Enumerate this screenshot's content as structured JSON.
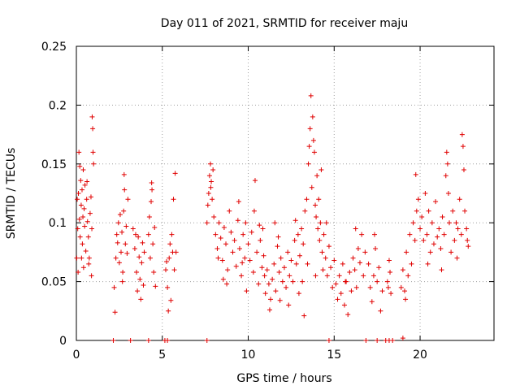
{
  "chart_data": {
    "type": "scatter",
    "title": "Day 011 of 2021, SRMTID for receiver maju",
    "xlabel": "GPS time / hours",
    "ylabel": "SRMTID / TECUs",
    "xlim": [
      0,
      24.3
    ],
    "ylim": [
      0,
      0.25
    ],
    "x_ticks": [
      0,
      5,
      10,
      15,
      20
    ],
    "x_tick_labels": [
      "0",
      "5",
      "10",
      "15",
      "20"
    ],
    "y_ticks": [
      0,
      0.05,
      0.1,
      0.15,
      0.2,
      0.25
    ],
    "y_tick_labels": [
      "0",
      "0.05",
      "0.1",
      "0.15",
      "0.2",
      "0.25"
    ],
    "grid": true,
    "marker": "+",
    "marker_color": "#e00000",
    "series": [
      {
        "name": "SRMTID",
        "points": [
          [
            0.02,
            0.07
          ],
          [
            0.05,
            0.12
          ],
          [
            0.08,
            0.095
          ],
          [
            0.1,
            0.058
          ],
          [
            0.12,
            0.125
          ],
          [
            0.15,
            0.16
          ],
          [
            0.18,
            0.103
          ],
          [
            0.2,
            0.148
          ],
          [
            0.22,
            0.088
          ],
          [
            0.25,
            0.136
          ],
          [
            0.28,
            0.115
          ],
          [
            0.3,
            0.07
          ],
          [
            0.33,
            0.128
          ],
          [
            0.35,
            0.082
          ],
          [
            0.38,
            0.105
          ],
          [
            0.4,
            0.145
          ],
          [
            0.42,
            0.062
          ],
          [
            0.45,
            0.112
          ],
          [
            0.48,
            0.097
          ],
          [
            0.5,
            0.132
          ],
          [
            0.55,
            0.076
          ],
          [
            0.6,
            0.12
          ],
          [
            0.65,
            0.101
          ],
          [
            0.7,
            0.088
          ],
          [
            0.75,
            0.07
          ],
          [
            0.8,
            0.108
          ],
          [
            0.85,
            0.122
          ],
          [
            0.9,
            0.095
          ],
          [
            0.92,
            0.19
          ],
          [
            0.95,
            0.18
          ],
          [
            0.97,
            0.16
          ],
          [
            1.0,
            0.15
          ],
          [
            0.88,
            0.055
          ],
          [
            0.72,
            0.065
          ],
          [
            0.62,
            0.135
          ],
          [
            2.2,
            0.045
          ],
          [
            2.25,
            0.024
          ],
          [
            2.3,
            0.07
          ],
          [
            2.35,
            0.09
          ],
          [
            2.4,
            0.083
          ],
          [
            2.45,
            0.1
          ],
          [
            2.5,
            0.066
          ],
          [
            2.55,
            0.107
          ],
          [
            2.6,
            0.075
          ],
          [
            2.65,
            0.092
          ],
          [
            2.7,
            0.058
          ],
          [
            2.75,
            0.11
          ],
          [
            2.8,
            0.128
          ],
          [
            2.85,
            0.082
          ],
          [
            2.9,
            0.097
          ],
          [
            2.95,
            0.074
          ],
          [
            3.0,
            0.12
          ],
          [
            2.78,
            0.141
          ],
          [
            2.68,
            0.05
          ],
          [
            3.3,
            0.095
          ],
          [
            3.4,
            0.078
          ],
          [
            3.5,
            0.058
          ],
          [
            3.55,
            0.042
          ],
          [
            3.6,
            0.088
          ],
          [
            3.65,
            0.071
          ],
          [
            3.7,
            0.052
          ],
          [
            3.75,
            0.035
          ],
          [
            3.8,
            0.066
          ],
          [
            3.85,
            0.083
          ],
          [
            3.9,
            0.047
          ],
          [
            3.95,
            0.075
          ],
          [
            3.45,
            0.09
          ],
          [
            4.2,
            0.09
          ],
          [
            4.25,
            0.105
          ],
          [
            4.3,
            0.07
          ],
          [
            4.35,
            0.118
          ],
          [
            4.4,
            0.128
          ],
          [
            4.45,
            0.082
          ],
          [
            4.5,
            0.058
          ],
          [
            4.55,
            0.096
          ],
          [
            4.6,
            0.046
          ],
          [
            4.38,
            0.134
          ],
          [
            5.2,
            0.06
          ],
          [
            5.3,
            0.045
          ],
          [
            5.35,
            0.025
          ],
          [
            5.4,
            0.07
          ],
          [
            5.45,
            0.082
          ],
          [
            5.5,
            0.034
          ],
          [
            5.55,
            0.09
          ],
          [
            5.6,
            0.075
          ],
          [
            5.65,
            0.12
          ],
          [
            5.7,
            0.06
          ],
          [
            5.75,
            0.142
          ],
          [
            5.8,
            0.075
          ],
          [
            5.25,
            0.067
          ],
          [
            7.6,
            0.1
          ],
          [
            7.65,
            0.115
          ],
          [
            7.7,
            0.125
          ],
          [
            7.75,
            0.14
          ],
          [
            7.8,
            0.15
          ],
          [
            7.85,
            0.135
          ],
          [
            7.9,
            0.12
          ],
          [
            7.95,
            0.145
          ],
          [
            8.0,
            0.105
          ],
          [
            7.82,
            0.13
          ],
          [
            8.1,
            0.09
          ],
          [
            8.2,
            0.078
          ],
          [
            8.3,
            0.1
          ],
          [
            8.4,
            0.087
          ],
          [
            8.5,
            0.068
          ],
          [
            8.6,
            0.096
          ],
          [
            8.7,
            0.082
          ],
          [
            8.8,
            0.06
          ],
          [
            8.9,
            0.11
          ],
          [
            9.0,
            0.092
          ],
          [
            8.25,
            0.07
          ],
          [
            8.55,
            0.052
          ],
          [
            8.75,
            0.048
          ],
          [
            9.1,
            0.075
          ],
          [
            9.2,
            0.085
          ],
          [
            9.3,
            0.063
          ],
          [
            9.4,
            0.102
          ],
          [
            9.5,
            0.078
          ],
          [
            9.6,
            0.055
          ],
          [
            9.7,
            0.09
          ],
          [
            9.8,
            0.07
          ],
          [
            9.9,
            0.042
          ],
          [
            10.0,
            0.082
          ],
          [
            9.45,
            0.118
          ],
          [
            9.65,
            0.066
          ],
          [
            9.85,
            0.1
          ],
          [
            10.1,
            0.068
          ],
          [
            10.2,
            0.092
          ],
          [
            10.3,
            0.058
          ],
          [
            10.4,
            0.136
          ],
          [
            10.5,
            0.075
          ],
          [
            10.6,
            0.048
          ],
          [
            10.7,
            0.085
          ],
          [
            10.8,
            0.062
          ],
          [
            10.9,
            0.072
          ],
          [
            11.0,
            0.04
          ],
          [
            10.35,
            0.11
          ],
          [
            10.65,
            0.098
          ],
          [
            10.85,
            0.095
          ],
          [
            10.95,
            0.055
          ],
          [
            11.1,
            0.06
          ],
          [
            11.2,
            0.048
          ],
          [
            11.3,
            0.035
          ],
          [
            11.4,
            0.052
          ],
          [
            11.5,
            0.065
          ],
          [
            11.6,
            0.042
          ],
          [
            11.7,
            0.08
          ],
          [
            11.8,
            0.058
          ],
          [
            11.9,
            0.07
          ],
          [
            12.0,
            0.05
          ],
          [
            11.25,
            0.026
          ],
          [
            11.55,
            0.1
          ],
          [
            11.75,
            0.088
          ],
          [
            11.85,
            0.034
          ],
          [
            12.1,
            0.062
          ],
          [
            12.2,
            0.045
          ],
          [
            12.3,
            0.075
          ],
          [
            12.4,
            0.055
          ],
          [
            12.5,
            0.068
          ],
          [
            12.6,
            0.05
          ],
          [
            12.7,
            0.085
          ],
          [
            12.8,
            0.065
          ],
          [
            12.9,
            0.09
          ],
          [
            13.0,
            0.072
          ],
          [
            12.35,
            0.03
          ],
          [
            12.75,
            0.102
          ],
          [
            12.95,
            0.04
          ],
          [
            13.1,
            0.095
          ],
          [
            13.2,
            0.082
          ],
          [
            13.3,
            0.11
          ],
          [
            13.4,
            0.12
          ],
          [
            13.5,
            0.15
          ],
          [
            13.55,
            0.165
          ],
          [
            13.6,
            0.18
          ],
          [
            13.65,
            0.208
          ],
          [
            13.7,
            0.13
          ],
          [
            13.75,
            0.19
          ],
          [
            13.8,
            0.17
          ],
          [
            13.85,
            0.16
          ],
          [
            13.9,
            0.115
          ],
          [
            13.95,
            0.105
          ],
          [
            14.0,
            0.14
          ],
          [
            14.05,
            0.095
          ],
          [
            14.1,
            0.12
          ],
          [
            14.15,
            0.085
          ],
          [
            14.2,
            0.1
          ],
          [
            14.3,
            0.075
          ],
          [
            13.15,
            0.05
          ],
          [
            13.25,
            0.021
          ],
          [
            13.45,
            0.065
          ],
          [
            13.92,
            0.055
          ],
          [
            14.25,
            0.145
          ],
          [
            14.35,
            0.06
          ],
          [
            14.4,
            0.09
          ],
          [
            14.5,
            0.07
          ],
          [
            14.6,
            0.055
          ],
          [
            14.7,
            0.08
          ],
          [
            14.8,
            0.062
          ],
          [
            14.9,
            0.045
          ],
          [
            15.0,
            0.068
          ],
          [
            15.1,
            0.048
          ],
          [
            15.2,
            0.035
          ],
          [
            14.55,
            0.1
          ],
          [
            15.3,
            0.055
          ],
          [
            15.4,
            0.04
          ],
          [
            15.5,
            0.065
          ],
          [
            15.6,
            0.03
          ],
          [
            15.7,
            0.05
          ],
          [
            15.8,
            0.022
          ],
          [
            15.9,
            0.058
          ],
          [
            16.0,
            0.042
          ],
          [
            16.1,
            0.07
          ],
          [
            16.2,
            0.06
          ],
          [
            16.3,
            0.045
          ],
          [
            16.4,
            0.078
          ],
          [
            16.5,
            0.066
          ],
          [
            16.6,
            0.09
          ],
          [
            16.7,
            0.055
          ],
          [
            16.8,
            0.075
          ],
          [
            16.25,
            0.095
          ],
          [
            15.65,
            0.05
          ],
          [
            17.0,
            0.065
          ],
          [
            17.1,
            0.045
          ],
          [
            17.2,
            0.033
          ],
          [
            17.3,
            0.055
          ],
          [
            17.4,
            0.078
          ],
          [
            17.5,
            0.05
          ],
          [
            17.6,
            0.062
          ],
          [
            17.7,
            0.025
          ],
          [
            17.8,
            0.042
          ],
          [
            17.35,
            0.09
          ],
          [
            18.1,
            0.05
          ],
          [
            18.15,
            0.045
          ],
          [
            18.2,
            0.068
          ],
          [
            18.25,
            0.058
          ],
          [
            18.3,
            0.04
          ],
          [
            18.9,
            0.045
          ],
          [
            19.0,
            0.06
          ],
          [
            19.1,
            0.042
          ],
          [
            19.2,
            0.075
          ],
          [
            19.3,
            0.055
          ],
          [
            19.4,
            0.09
          ],
          [
            19.5,
            0.065
          ],
          [
            19.6,
            0.1
          ],
          [
            19.7,
            0.085
          ],
          [
            19.8,
            0.11
          ],
          [
            19.9,
            0.12
          ],
          [
            20.0,
            0.095
          ],
          [
            19.15,
            0.035
          ],
          [
            19.75,
            0.141
          ],
          [
            20.1,
            0.105
          ],
          [
            20.2,
            0.085
          ],
          [
            20.3,
            0.125
          ],
          [
            20.4,
            0.09
          ],
          [
            20.5,
            0.11
          ],
          [
            20.6,
            0.075
          ],
          [
            20.7,
            0.1
          ],
          [
            20.8,
            0.082
          ],
          [
            20.9,
            0.118
          ],
          [
            21.0,
            0.088
          ],
          [
            21.1,
            0.095
          ],
          [
            21.2,
            0.078
          ],
          [
            21.3,
            0.105
          ],
          [
            21.4,
            0.09
          ],
          [
            21.5,
            0.14
          ],
          [
            21.55,
            0.16
          ],
          [
            21.6,
            0.15
          ],
          [
            21.65,
            0.125
          ],
          [
            21.7,
            0.1
          ],
          [
            21.8,
            0.075
          ],
          [
            21.9,
            0.11
          ],
          [
            22.0,
            0.085
          ],
          [
            22.1,
            0.1
          ],
          [
            22.2,
            0.095
          ],
          [
            22.3,
            0.12
          ],
          [
            22.4,
            0.09
          ],
          [
            22.45,
            0.175
          ],
          [
            22.5,
            0.165
          ],
          [
            22.55,
            0.145
          ],
          [
            22.6,
            0.11
          ],
          [
            22.7,
            0.095
          ],
          [
            22.75,
            0.085
          ],
          [
            22.8,
            0.08
          ],
          [
            20.45,
            0.065
          ],
          [
            21.25,
            0.06
          ],
          [
            22.15,
            0.07
          ],
          [
            2.15,
            0.0
          ],
          [
            3.15,
            0.0
          ],
          [
            4.2,
            0.0
          ],
          [
            5.15,
            0.0
          ],
          [
            5.3,
            0.0
          ],
          [
            7.6,
            0.0
          ],
          [
            14.7,
            0.0
          ],
          [
            16.85,
            0.0
          ],
          [
            17.5,
            0.0
          ],
          [
            18.0,
            0.0
          ],
          [
            18.2,
            0.0
          ],
          [
            18.4,
            0.0
          ],
          [
            19.0,
            0.002
          ]
        ]
      }
    ]
  }
}
